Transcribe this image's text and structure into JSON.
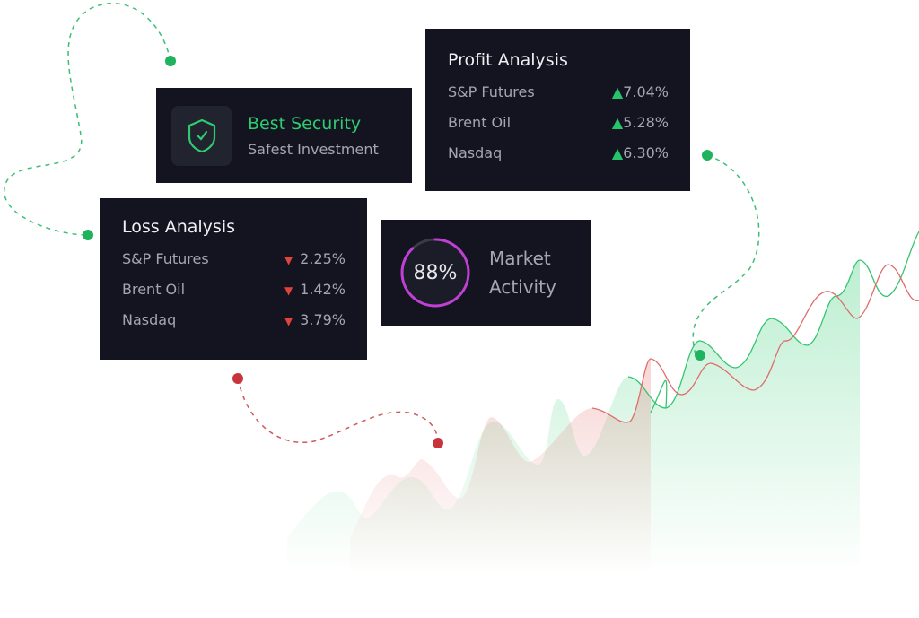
{
  "security": {
    "title": "Best Security",
    "subtitle": "Safest Investment",
    "icon": "shield-check-icon",
    "accent": "#2ecc71"
  },
  "profit": {
    "title": "Profit Analysis",
    "items": [
      {
        "label": "S&P Futures",
        "value": "7.04%"
      },
      {
        "label": "Brent Oil",
        "value": "5.28%"
      },
      {
        "label": "Nasdaq",
        "value": "6.30%"
      }
    ],
    "color": "#27c26c"
  },
  "loss": {
    "title": "Loss Analysis",
    "items": [
      {
        "label": "S&P Futures",
        "value": "2.25%"
      },
      {
        "label": "Brent Oil",
        "value": "1.42%"
      },
      {
        "label": "Nasdaq",
        "value": "3.79%"
      }
    ],
    "color": "#e0443c"
  },
  "market": {
    "value_label": "88%",
    "progress": 0.88,
    "line1": "Market",
    "line2": "Activity",
    "ring_color": "#c23fd6"
  }
}
